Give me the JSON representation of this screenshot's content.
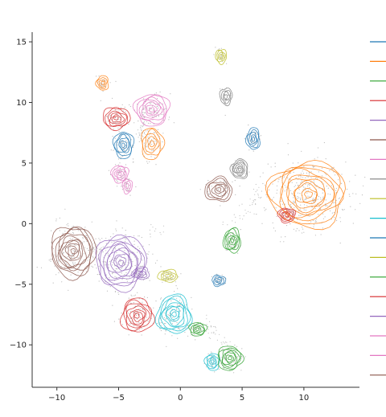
{
  "chart_data": {
    "type": "contour",
    "title": "",
    "xlabel": "",
    "ylabel": "",
    "xlim": [
      -12,
      14.5
    ],
    "ylim": [
      -13.5,
      15.8
    ],
    "x_ticks": [
      -10,
      -5,
      0,
      5,
      10
    ],
    "y_ticks": [
      -10,
      -5,
      0,
      5,
      10,
      15
    ],
    "x_tick_labels": [
      "−10",
      "−5",
      "0",
      "5",
      "10"
    ],
    "y_tick_labels": [
      "−10",
      "−5",
      "0",
      "5",
      "10",
      "15"
    ],
    "grid": false,
    "legend_position": "right",
    "legend_colors": [
      "#1f77b4",
      "#ff7f0e",
      "#2ca02c",
      "#d62728",
      "#9467bd",
      "#8c564b",
      "#e377c2",
      "#7f7f7f",
      "#bcbd22",
      "#17becf",
      "#1f77b4",
      "#bcbd22",
      "#2ca02c",
      "#d62728",
      "#9467bd",
      "#e377c2",
      "#e377c2",
      "#8c564b"
    ],
    "clusters": [
      {
        "x": -6.3,
        "y": 11.6,
        "rx": 0.5,
        "ry": 0.6,
        "rot": 0,
        "color": "#ff7f0e",
        "levels": 4
      },
      {
        "x": -5.2,
        "y": 8.7,
        "rx": 1.1,
        "ry": 0.9,
        "rot": 0,
        "color": "#d62728",
        "levels": 6
      },
      {
        "x": -2.3,
        "y": 9.4,
        "rx": 1.4,
        "ry": 1.3,
        "rot": 0,
        "color": "#e377c2",
        "levels": 7
      },
      {
        "x": -4.6,
        "y": 6.5,
        "rx": 0.8,
        "ry": 1.1,
        "rot": 0,
        "color": "#1f77b4",
        "levels": 6
      },
      {
        "x": -2.3,
        "y": 6.6,
        "rx": 0.9,
        "ry": 1.3,
        "rot": 0,
        "color": "#ff7f0e",
        "levels": 5
      },
      {
        "x": -4.9,
        "y": 4.1,
        "rx": 0.7,
        "ry": 0.7,
        "rot": 0,
        "color": "#e377c2",
        "levels": 5
      },
      {
        "x": -4.3,
        "y": 3.1,
        "rx": 0.4,
        "ry": 0.6,
        "rot": 0,
        "color": "#e377c2",
        "levels": 3
      },
      {
        "x": 3.3,
        "y": 13.8,
        "rx": 0.45,
        "ry": 0.6,
        "rot": 0,
        "color": "#bcbd22",
        "levels": 4
      },
      {
        "x": 3.7,
        "y": 10.5,
        "rx": 0.5,
        "ry": 0.7,
        "rot": 0,
        "color": "#7f7f7f",
        "levels": 4
      },
      {
        "x": 5.9,
        "y": 7.0,
        "rx": 0.55,
        "ry": 0.9,
        "rot": 0,
        "color": "#1f77b4",
        "levels": 5
      },
      {
        "x": 4.8,
        "y": 4.5,
        "rx": 0.7,
        "ry": 0.8,
        "rot": 0,
        "color": "#7f7f7f",
        "levels": 6
      },
      {
        "x": 3.1,
        "y": 2.8,
        "rx": 1.1,
        "ry": 1.0,
        "rot": 0,
        "color": "#8c564b",
        "levels": 6
      },
      {
        "x": 10.3,
        "y": 2.4,
        "rx": 3.1,
        "ry": 2.7,
        "rot": 0,
        "color": "#ff7f0e",
        "levels": 10
      },
      {
        "x": 8.6,
        "y": 0.7,
        "rx": 0.7,
        "ry": 0.6,
        "rot": 0,
        "color": "#d62728",
        "levels": 5
      },
      {
        "x": 4.2,
        "y": -1.4,
        "rx": 0.7,
        "ry": 1.0,
        "rot": 0,
        "color": "#2ca02c",
        "levels": 6
      },
      {
        "x": -8.7,
        "y": -2.3,
        "rx": 1.8,
        "ry": 2.1,
        "rot": 0,
        "color": "#8c564b",
        "levels": 10
      },
      {
        "x": -4.8,
        "y": -3.2,
        "rx": 2.0,
        "ry": 2.2,
        "rot": 0,
        "color": "#9467bd",
        "levels": 10
      },
      {
        "x": -1.0,
        "y": -4.3,
        "rx": 0.8,
        "ry": 0.5,
        "rot": 0,
        "color": "#bcbd22",
        "levels": 4
      },
      {
        "x": -3.2,
        "y": -4.1,
        "rx": 0.7,
        "ry": 0.5,
        "rot": 0,
        "color": "#9467bd",
        "levels": 4
      },
      {
        "x": 3.1,
        "y": -4.7,
        "rx": 0.55,
        "ry": 0.45,
        "rot": 0,
        "color": "#1f77b4",
        "levels": 4
      },
      {
        "x": -3.5,
        "y": -7.6,
        "rx": 1.3,
        "ry": 1.4,
        "rot": 0,
        "color": "#d62728",
        "levels": 7
      },
      {
        "x": -0.5,
        "y": -7.5,
        "rx": 1.4,
        "ry": 1.6,
        "rot": 0,
        "color": "#17becf",
        "levels": 8
      },
      {
        "x": 1.4,
        "y": -8.7,
        "rx": 0.7,
        "ry": 0.55,
        "rot": 0,
        "color": "#2ca02c",
        "levels": 5
      },
      {
        "x": 2.6,
        "y": -11.4,
        "rx": 0.6,
        "ry": 0.7,
        "rot": 0,
        "color": "#17becf",
        "levels": 5
      },
      {
        "x": 4.0,
        "y": -11.1,
        "rx": 1.0,
        "ry": 1.0,
        "rot": 0,
        "color": "#2ca02c",
        "levels": 7
      }
    ]
  }
}
